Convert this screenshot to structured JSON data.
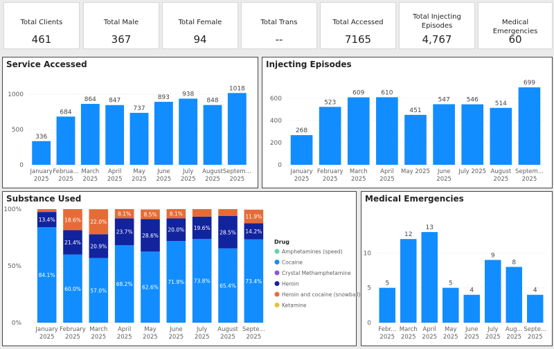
{
  "kpis": [
    {
      "label": "Total Clients",
      "value": "461"
    },
    {
      "label": "Total Male",
      "value": "367"
    },
    {
      "label": "Total Female",
      "value": "94"
    },
    {
      "label": "Total Trans",
      "value": "--"
    },
    {
      "label": "Total Accessed",
      "value": "7165"
    },
    {
      "label": "Total Injecting Episodes",
      "value": "4,767"
    },
    {
      "label": "Medical Emergencies",
      "value": "60"
    }
  ],
  "colors": {
    "blue": "#118dff",
    "navy": "#12239e",
    "orange": "#e66c37",
    "gray_text": "#605e5c",
    "bar_label": "#444444"
  },
  "chart_data": [
    {
      "type": "bar",
      "title": "Service Accessed",
      "categories": [
        "January 2025",
        "February 2025",
        "March 2025",
        "April 2025",
        "May 2025",
        "June 2025",
        "July 2025",
        "August 2025",
        "September 2025"
      ],
      "tick_labels": [
        [
          "January",
          "2025"
        ],
        [
          "Februa...",
          "2025"
        ],
        [
          "March",
          "2025"
        ],
        [
          "April",
          "2025"
        ],
        [
          "May",
          "2025"
        ],
        [
          "June",
          "2025"
        ],
        [
          "July",
          "2025"
        ],
        [
          "August",
          "2025"
        ],
        [
          "Septem...",
          "2025"
        ]
      ],
      "values": [
        336,
        684,
        864,
        847,
        737,
        893,
        938,
        848,
        1018
      ],
      "ylim": [
        0,
        1080
      ],
      "yticks": [
        0,
        500,
        1000
      ],
      "grid": true
    },
    {
      "type": "bar",
      "title": "Injecting Episodes",
      "categories": [
        "January 2025",
        "February 2025",
        "March 2025",
        "April 2025",
        "May 2025",
        "June 2025",
        "July 2025",
        "August 2025",
        "September 2025"
      ],
      "tick_labels": [
        [
          "January",
          "2025"
        ],
        [
          "February",
          "2025"
        ],
        [
          "March",
          "2025"
        ],
        [
          "April",
          "2025"
        ],
        [
          "May 2025",
          ""
        ],
        [
          "June",
          "2025"
        ],
        [
          "July 2025",
          ""
        ],
        [
          "August",
          "2025"
        ],
        [
          "Septem...",
          "2025"
        ]
      ],
      "values": [
        268,
        523,
        609,
        610,
        451,
        547,
        546,
        514,
        699
      ],
      "ylim": [
        0,
        725
      ],
      "yticks": [
        0,
        200,
        400,
        600
      ],
      "grid": true
    },
    {
      "type": "bar",
      "stacked": true,
      "title": "Substance Used",
      "categories": [
        "January 2025",
        "February 2025",
        "March 2025",
        "April 2025",
        "May 2025",
        "June 2025",
        "July 2025",
        "August 2025",
        "September 2025"
      ],
      "tick_labels": [
        [
          "January",
          "2025"
        ],
        [
          "February",
          "2025"
        ],
        [
          "March",
          "2025"
        ],
        [
          "April",
          "2025"
        ],
        [
          "May",
          "2025"
        ],
        [
          "June",
          "2025"
        ],
        [
          "July",
          "2025"
        ],
        [
          "August",
          "2025"
        ],
        [
          "Septe...",
          "2025"
        ]
      ],
      "ylim": [
        0,
        100
      ],
      "yticks": [
        "0%",
        "50%",
        "100%"
      ],
      "grid": true,
      "legend_title": "Drug",
      "legend_position": "right",
      "legend": [
        {
          "name": "Amphetamines (speed)",
          "color": "#6bd1a7"
        },
        {
          "name": "Cocaine",
          "color": "#118dff"
        },
        {
          "name": "Crystal Methamphetamine",
          "color": "#8a5ad6"
        },
        {
          "name": "Heroin",
          "color": "#12239e"
        },
        {
          "name": "Heroin and cocaine (snowball)",
          "color": "#e66c37"
        },
        {
          "name": "Ketamine",
          "color": "#e0c341"
        }
      ],
      "series": [
        {
          "name": "Cocaine",
          "values": [
            84.1,
            60.0,
            57.0,
            68.2,
            62.6,
            71.9,
            73.8,
            65.4,
            73.4
          ],
          "labels": [
            "84.1%",
            "60.0%",
            "57.0%",
            "68.2%",
            "62.6%",
            "71.9%",
            "73.8%",
            "65.4%",
            "73.4%"
          ]
        },
        {
          "name": "Heroin",
          "values": [
            13.4,
            21.4,
            20.9,
            23.7,
            28.6,
            20.0,
            19.6,
            28.5,
            14.2
          ],
          "labels": [
            "13.4%",
            "21.4%",
            "20.9%",
            "23.7%",
            "28.6%",
            "20.0%",
            "19.6%",
            "28.5%",
            "14.2%"
          ]
        },
        {
          "name": "Heroin and cocaine (snowball)",
          "values": [
            2.5,
            18.6,
            22.0,
            8.1,
            8.5,
            8.1,
            6.6,
            6.1,
            11.9
          ],
          "labels": [
            "",
            "18.6%",
            "22.0%",
            "8.1%",
            "8.5%",
            "8.1%",
            "",
            "",
            "11.9%"
          ]
        }
      ]
    },
    {
      "type": "bar",
      "title": "Medical Emergencies",
      "categories": [
        "February 2025",
        "March 2025",
        "April 2025",
        "May 2025",
        "June 2025",
        "July 2025",
        "August 2025",
        "September 2025"
      ],
      "tick_labels": [
        [
          "Febr...",
          "2025"
        ],
        [
          "March",
          "2025"
        ],
        [
          "April",
          "2025"
        ],
        [
          "May",
          "2025"
        ],
        [
          "June",
          "2025"
        ],
        [
          "July",
          "2025"
        ],
        [
          "Aug...",
          "2025"
        ],
        [
          "Septe...",
          "2025"
        ]
      ],
      "values": [
        5,
        12,
        13,
        5,
        4,
        9,
        8,
        4
      ],
      "ylim": [
        0,
        14.6
      ],
      "yticks": [
        0,
        5,
        10
      ],
      "grid": true
    }
  ]
}
